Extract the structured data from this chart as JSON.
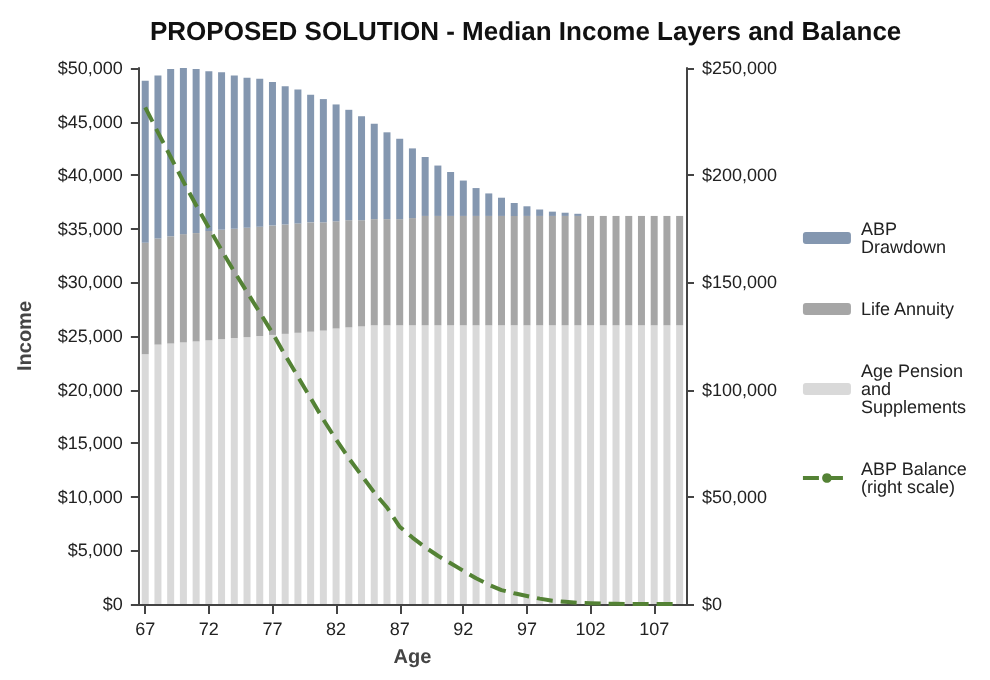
{
  "chart_data": {
    "type": "bar",
    "title": "PROPOSED SOLUTION - Median Income Layers and Balance",
    "xlabel": "Age",
    "ylabel": "Income",
    "stacked": true,
    "categories": [
      "67",
      null,
      null,
      null,
      null,
      "72",
      null,
      null,
      null,
      null,
      "77",
      null,
      null,
      null,
      null,
      "82",
      null,
      null,
      null,
      null,
      "87",
      null,
      null,
      null,
      null,
      "92",
      null,
      null,
      null,
      null,
      "97",
      null,
      null,
      null,
      null,
      "102",
      null,
      null,
      null,
      null,
      "107",
      null,
      null
    ],
    "series": [
      {
        "name": "Age Pension and Supplements",
        "color": "#d9d9d9",
        "values": [
          23300,
          24200,
          24300,
          24400,
          24500,
          24600,
          24700,
          24800,
          24900,
          25000,
          25100,
          25200,
          25300,
          25400,
          25500,
          25700,
          25800,
          25900,
          26000,
          26000,
          26000,
          26000,
          26000,
          26000,
          26000,
          26000,
          26000,
          26000,
          26000,
          26000,
          26000,
          26000,
          26000,
          26000,
          26000,
          26000,
          26000,
          26000,
          26000,
          26000,
          26000,
          26000,
          26000
        ]
      },
      {
        "name": "Life Annuity",
        "color": "#a6a6a6",
        "values": [
          10400,
          9900,
          10000,
          10100,
          10100,
          10200,
          10200,
          10200,
          10200,
          10200,
          10200,
          10200,
          10200,
          10200,
          10100,
          10000,
          10000,
          9900,
          9900,
          9900,
          9900,
          10000,
          10200,
          10200,
          10200,
          10200,
          10200,
          10200,
          10200,
          10200,
          10200,
          10200,
          10200,
          10200,
          10200,
          10200,
          10200,
          10200,
          10200,
          10200,
          10200,
          10200,
          10200
        ]
      },
      {
        "name": "ABP Drawdown",
        "color": "#8497b0",
        "values": [
          15100,
          15200,
          15600,
          15500,
          15300,
          14900,
          14700,
          14300,
          14000,
          13800,
          13400,
          12900,
          12500,
          11900,
          11500,
          10900,
          10300,
          9700,
          8900,
          8100,
          7500,
          6500,
          5500,
          4700,
          4100,
          3300,
          2600,
          2100,
          1700,
          1200,
          900,
          600,
          400,
          300,
          200,
          0,
          0,
          0,
          0,
          0,
          0,
          0,
          0
        ]
      },
      {
        "name": "ABP Balance (right scale)",
        "type": "line",
        "axis": "y2",
        "line_style": "dashed",
        "marker": "none",
        "color": "#548235",
        "values": [
          231600,
          220000,
          208500,
          197000,
          186000,
          175500,
          165000,
          155000,
          145500,
          136000,
          126400,
          116000,
          106000,
          96000,
          86000,
          76700,
          68000,
          60000,
          52000,
          45000,
          36000,
          31000,
          26500,
          22500,
          19000,
          15500,
          12000,
          9000,
          6500,
          5000,
          3700,
          2500,
          1500,
          1000,
          600,
          400,
          200,
          100,
          0,
          0,
          0,
          0,
          0
        ]
      }
    ],
    "ylim": [
      0,
      50000
    ],
    "yticks": [
      {
        "value": 0,
        "label": "$0"
      },
      {
        "value": 5000,
        "label": "$5,000"
      },
      {
        "value": 10000,
        "label": "$10,000"
      },
      {
        "value": 15000,
        "label": "$15,000"
      },
      {
        "value": 20000,
        "label": "$20,000"
      },
      {
        "value": 25000,
        "label": "$25,000"
      },
      {
        "value": 30000,
        "label": "$30,000"
      },
      {
        "value": 35000,
        "label": "$35,000"
      },
      {
        "value": 40000,
        "label": "$40,000"
      },
      {
        "value": 45000,
        "label": "$45,000"
      },
      {
        "value": 50000,
        "label": "$50,000"
      }
    ],
    "y2lim": [
      0,
      250000
    ],
    "y2ticks": [
      {
        "value": 0,
        "label": "$0"
      },
      {
        "value": 50000,
        "label": "$50,000"
      },
      {
        "value": 100000,
        "label": "$100,000"
      },
      {
        "value": 150000,
        "label": "$150,000"
      },
      {
        "value": 200000,
        "label": "$200,000"
      },
      {
        "value": 250000,
        "label": "$250,000"
      }
    ],
    "grid": false,
    "legend": "right"
  }
}
